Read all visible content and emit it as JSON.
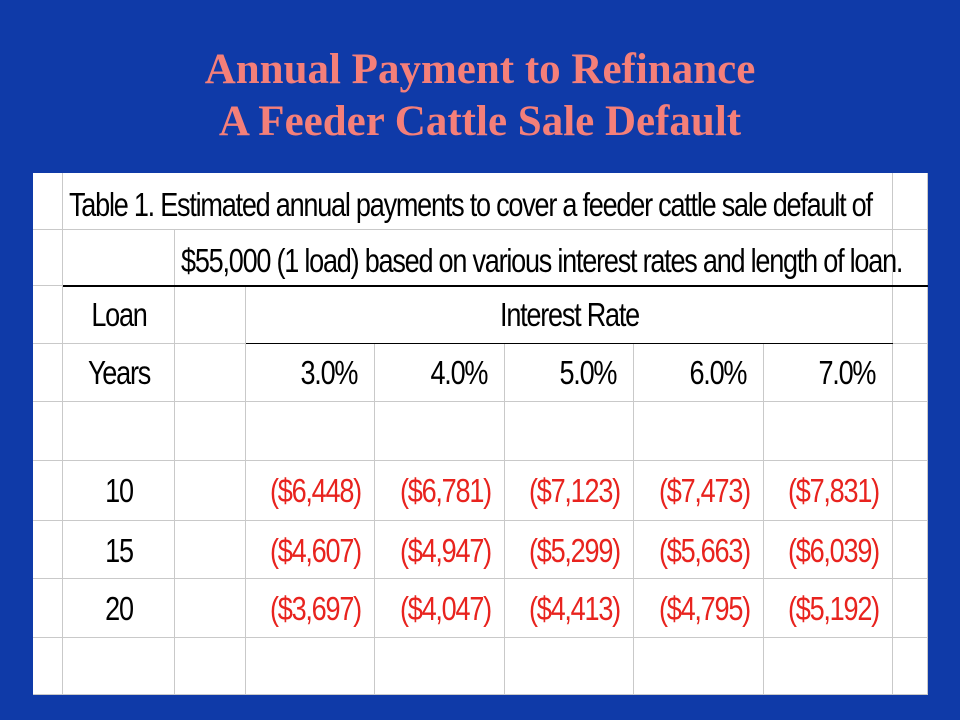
{
  "slide": {
    "title_line1": "Annual Payment to Refinance",
    "title_line2": "A Feeder Cattle Sale Default"
  },
  "table": {
    "caption_line1": "Table 1.  Estimated annual payments to cover a feeder cattle sale default of",
    "caption_line2": "$55,000 (1 load) based on various interest rates and length of loan.",
    "header_loan": "Loan",
    "header_years": "Years",
    "header_interest_rate": "Interest Rate",
    "rates": [
      "3.0%",
      "4.0%",
      "5.0%",
      "6.0%",
      "7.0%"
    ],
    "rows": [
      {
        "years": "10",
        "payments": [
          "($6,448)",
          "($6,781)",
          "($7,123)",
          "($7,473)",
          "($7,831)"
        ]
      },
      {
        "years": "15",
        "payments": [
          "($4,607)",
          "($4,947)",
          "($5,299)",
          "($5,663)",
          "($6,039)"
        ]
      },
      {
        "years": "20",
        "payments": [
          "($3,697)",
          "($4,047)",
          "($4,413)",
          "($4,795)",
          "($5,192)"
        ]
      }
    ]
  },
  "colors": {
    "background": "#0f3aa8",
    "title": "#f47f79",
    "negative_value": "#e8231e"
  }
}
